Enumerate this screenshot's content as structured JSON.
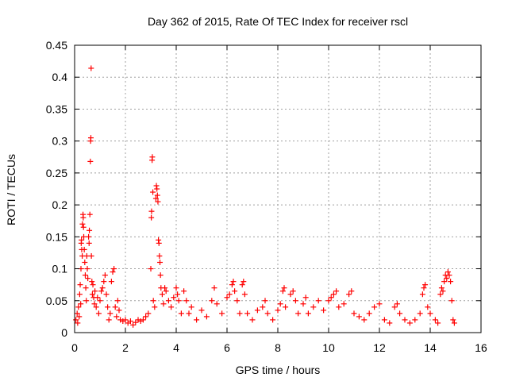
{
  "chart_data": {
    "type": "scatter",
    "title": "Day 362 of 2015, Rate Of TEC Index for receiver rscl",
    "xlabel": "GPS time / hours",
    "ylabel": "ROTI / TECUs",
    "xlim": [
      0,
      16
    ],
    "ylim": [
      0,
      0.45
    ],
    "grid": true,
    "marker": "+",
    "marker_color": "#ff0000",
    "x_ticks": [
      0,
      2,
      4,
      6,
      8,
      10,
      12,
      14,
      16
    ],
    "x_tick_labels": [
      "0",
      "2",
      "4",
      "6",
      "8",
      "10",
      "12",
      "14",
      "16"
    ],
    "y_ticks": [
      0,
      0.05,
      0.1,
      0.15,
      0.2,
      0.25,
      0.3,
      0.35,
      0.4,
      0.45
    ],
    "y_tick_labels": [
      "0",
      "0.05",
      "0.1",
      "0.15",
      "0.2",
      "0.25",
      "0.3",
      "0.35",
      "0.4",
      "0.45"
    ],
    "series": [
      {
        "name": "ROTI",
        "points": [
          [
            0.05,
            0.02
          ],
          [
            0.1,
            0.03
          ],
          [
            0.12,
            0.015
          ],
          [
            0.15,
            0.04
          ],
          [
            0.18,
            0.025
          ],
          [
            0.2,
            0.06
          ],
          [
            0.22,
            0.075
          ],
          [
            0.24,
            0.045
          ],
          [
            0.25,
            0.1
          ],
          [
            0.26,
            0.14
          ],
          [
            0.27,
            0.145
          ],
          [
            0.28,
            0.13
          ],
          [
            0.3,
            0.12
          ],
          [
            0.31,
            0.17
          ],
          [
            0.33,
            0.185
          ],
          [
            0.34,
            0.18
          ],
          [
            0.35,
            0.165
          ],
          [
            0.36,
            0.15
          ],
          [
            0.38,
            0.13
          ],
          [
            0.4,
            0.11
          ],
          [
            0.42,
            0.09
          ],
          [
            0.44,
            0.07
          ],
          [
            0.46,
            0.05
          ],
          [
            0.48,
            0.12
          ],
          [
            0.5,
            0.1
          ],
          [
            0.52,
            0.085
          ],
          [
            0.55,
            0.15
          ],
          [
            0.57,
            0.14
          ],
          [
            0.58,
            0.16
          ],
          [
            0.6,
            0.185
          ],
          [
            0.62,
            0.268
          ],
          [
            0.63,
            0.3
          ],
          [
            0.64,
            0.305
          ],
          [
            0.65,
            0.414
          ],
          [
            0.66,
            0.12
          ],
          [
            0.68,
            0.08
          ],
          [
            0.7,
            0.06
          ],
          [
            0.72,
            0.075
          ],
          [
            0.75,
            0.055
          ],
          [
            0.78,
            0.045
          ],
          [
            0.8,
            0.065
          ],
          [
            0.85,
            0.04
          ],
          [
            0.9,
            0.055
          ],
          [
            0.95,
            0.03
          ],
          [
            1.0,
            0.05
          ],
          [
            1.05,
            0.065
          ],
          [
            1.1,
            0.07
          ],
          [
            1.15,
            0.08
          ],
          [
            1.2,
            0.09
          ],
          [
            1.25,
            0.06
          ],
          [
            1.3,
            0.04
          ],
          [
            1.35,
            0.02
          ],
          [
            1.4,
            0.03
          ],
          [
            1.45,
            0.08
          ],
          [
            1.5,
            0.095
          ],
          [
            1.55,
            0.1
          ],
          [
            1.6,
            0.04
          ],
          [
            1.65,
            0.025
          ],
          [
            1.7,
            0.05
          ],
          [
            1.75,
            0.035
          ],
          [
            1.8,
            0.02
          ],
          [
            1.9,
            0.018
          ],
          [
            2.0,
            0.02
          ],
          [
            2.1,
            0.015
          ],
          [
            2.2,
            0.018
          ],
          [
            2.3,
            0.012
          ],
          [
            2.4,
            0.016
          ],
          [
            2.5,
            0.02
          ],
          [
            2.6,
            0.018
          ],
          [
            2.7,
            0.02
          ],
          [
            2.8,
            0.025
          ],
          [
            2.9,
            0.03
          ],
          [
            3.0,
            0.1
          ],
          [
            3.02,
            0.18
          ],
          [
            3.03,
            0.19
          ],
          [
            3.05,
            0.27
          ],
          [
            3.06,
            0.275
          ],
          [
            3.08,
            0.22
          ],
          [
            3.1,
            0.05
          ],
          [
            3.15,
            0.04
          ],
          [
            3.2,
            0.21
          ],
          [
            3.22,
            0.23
          ],
          [
            3.24,
            0.225
          ],
          [
            3.26,
            0.215
          ],
          [
            3.28,
            0.205
          ],
          [
            3.3,
            0.145
          ],
          [
            3.32,
            0.14
          ],
          [
            3.34,
            0.12
          ],
          [
            3.36,
            0.11
          ],
          [
            3.38,
            0.09
          ],
          [
            3.4,
            0.07
          ],
          [
            3.45,
            0.06
          ],
          [
            3.5,
            0.045
          ],
          [
            3.55,
            0.07
          ],
          [
            3.6,
            0.065
          ],
          [
            3.7,
            0.05
          ],
          [
            3.8,
            0.04
          ],
          [
            3.9,
            0.055
          ],
          [
            4.0,
            0.07
          ],
          [
            4.05,
            0.06
          ],
          [
            4.1,
            0.05
          ],
          [
            4.2,
            0.03
          ],
          [
            4.3,
            0.065
          ],
          [
            4.4,
            0.05
          ],
          [
            4.5,
            0.03
          ],
          [
            4.6,
            0.04
          ],
          [
            4.8,
            0.02
          ],
          [
            5.0,
            0.035
          ],
          [
            5.2,
            0.025
          ],
          [
            5.4,
            0.05
          ],
          [
            5.5,
            0.07
          ],
          [
            5.6,
            0.045
          ],
          [
            5.8,
            0.03
          ],
          [
            6.0,
            0.055
          ],
          [
            6.1,
            0.06
          ],
          [
            6.2,
            0.075
          ],
          [
            6.25,
            0.08
          ],
          [
            6.3,
            0.065
          ],
          [
            6.4,
            0.05
          ],
          [
            6.5,
            0.03
          ],
          [
            6.6,
            0.075
          ],
          [
            6.65,
            0.08
          ],
          [
            6.7,
            0.06
          ],
          [
            6.8,
            0.03
          ],
          [
            7.0,
            0.02
          ],
          [
            7.2,
            0.035
          ],
          [
            7.4,
            0.04
          ],
          [
            7.5,
            0.05
          ],
          [
            7.6,
            0.03
          ],
          [
            7.8,
            0.02
          ],
          [
            8.0,
            0.035
          ],
          [
            8.1,
            0.045
          ],
          [
            8.2,
            0.065
          ],
          [
            8.25,
            0.07
          ],
          [
            8.3,
            0.04
          ],
          [
            8.5,
            0.06
          ],
          [
            8.6,
            0.065
          ],
          [
            8.7,
            0.05
          ],
          [
            8.8,
            0.03
          ],
          [
            9.0,
            0.045
          ],
          [
            9.1,
            0.055
          ],
          [
            9.2,
            0.03
          ],
          [
            9.4,
            0.04
          ],
          [
            9.6,
            0.05
          ],
          [
            9.8,
            0.035
          ],
          [
            10.0,
            0.05
          ],
          [
            10.1,
            0.055
          ],
          [
            10.2,
            0.06
          ],
          [
            10.3,
            0.065
          ],
          [
            10.4,
            0.04
          ],
          [
            10.6,
            0.045
          ],
          [
            10.8,
            0.06
          ],
          [
            10.9,
            0.065
          ],
          [
            11.0,
            0.03
          ],
          [
            11.2,
            0.025
          ],
          [
            11.4,
            0.02
          ],
          [
            11.6,
            0.03
          ],
          [
            11.8,
            0.04
          ],
          [
            12.0,
            0.045
          ],
          [
            12.2,
            0.02
          ],
          [
            12.4,
            0.015
          ],
          [
            12.6,
            0.04
          ],
          [
            12.7,
            0.045
          ],
          [
            12.8,
            0.03
          ],
          [
            13.0,
            0.02
          ],
          [
            13.2,
            0.015
          ],
          [
            13.4,
            0.02
          ],
          [
            13.6,
            0.03
          ],
          [
            13.7,
            0.06
          ],
          [
            13.75,
            0.07
          ],
          [
            13.8,
            0.075
          ],
          [
            13.9,
            0.04
          ],
          [
            14.0,
            0.03
          ],
          [
            14.2,
            0.02
          ],
          [
            14.3,
            0.015
          ],
          [
            14.4,
            0.06
          ],
          [
            14.45,
            0.07
          ],
          [
            14.5,
            0.065
          ],
          [
            14.55,
            0.08
          ],
          [
            14.6,
            0.09
          ],
          [
            14.65,
            0.085
          ],
          [
            14.7,
            0.095
          ],
          [
            14.75,
            0.09
          ],
          [
            14.8,
            0.08
          ],
          [
            14.85,
            0.05
          ],
          [
            14.9,
            0.02
          ],
          [
            14.95,
            0.015
          ]
        ]
      }
    ]
  }
}
